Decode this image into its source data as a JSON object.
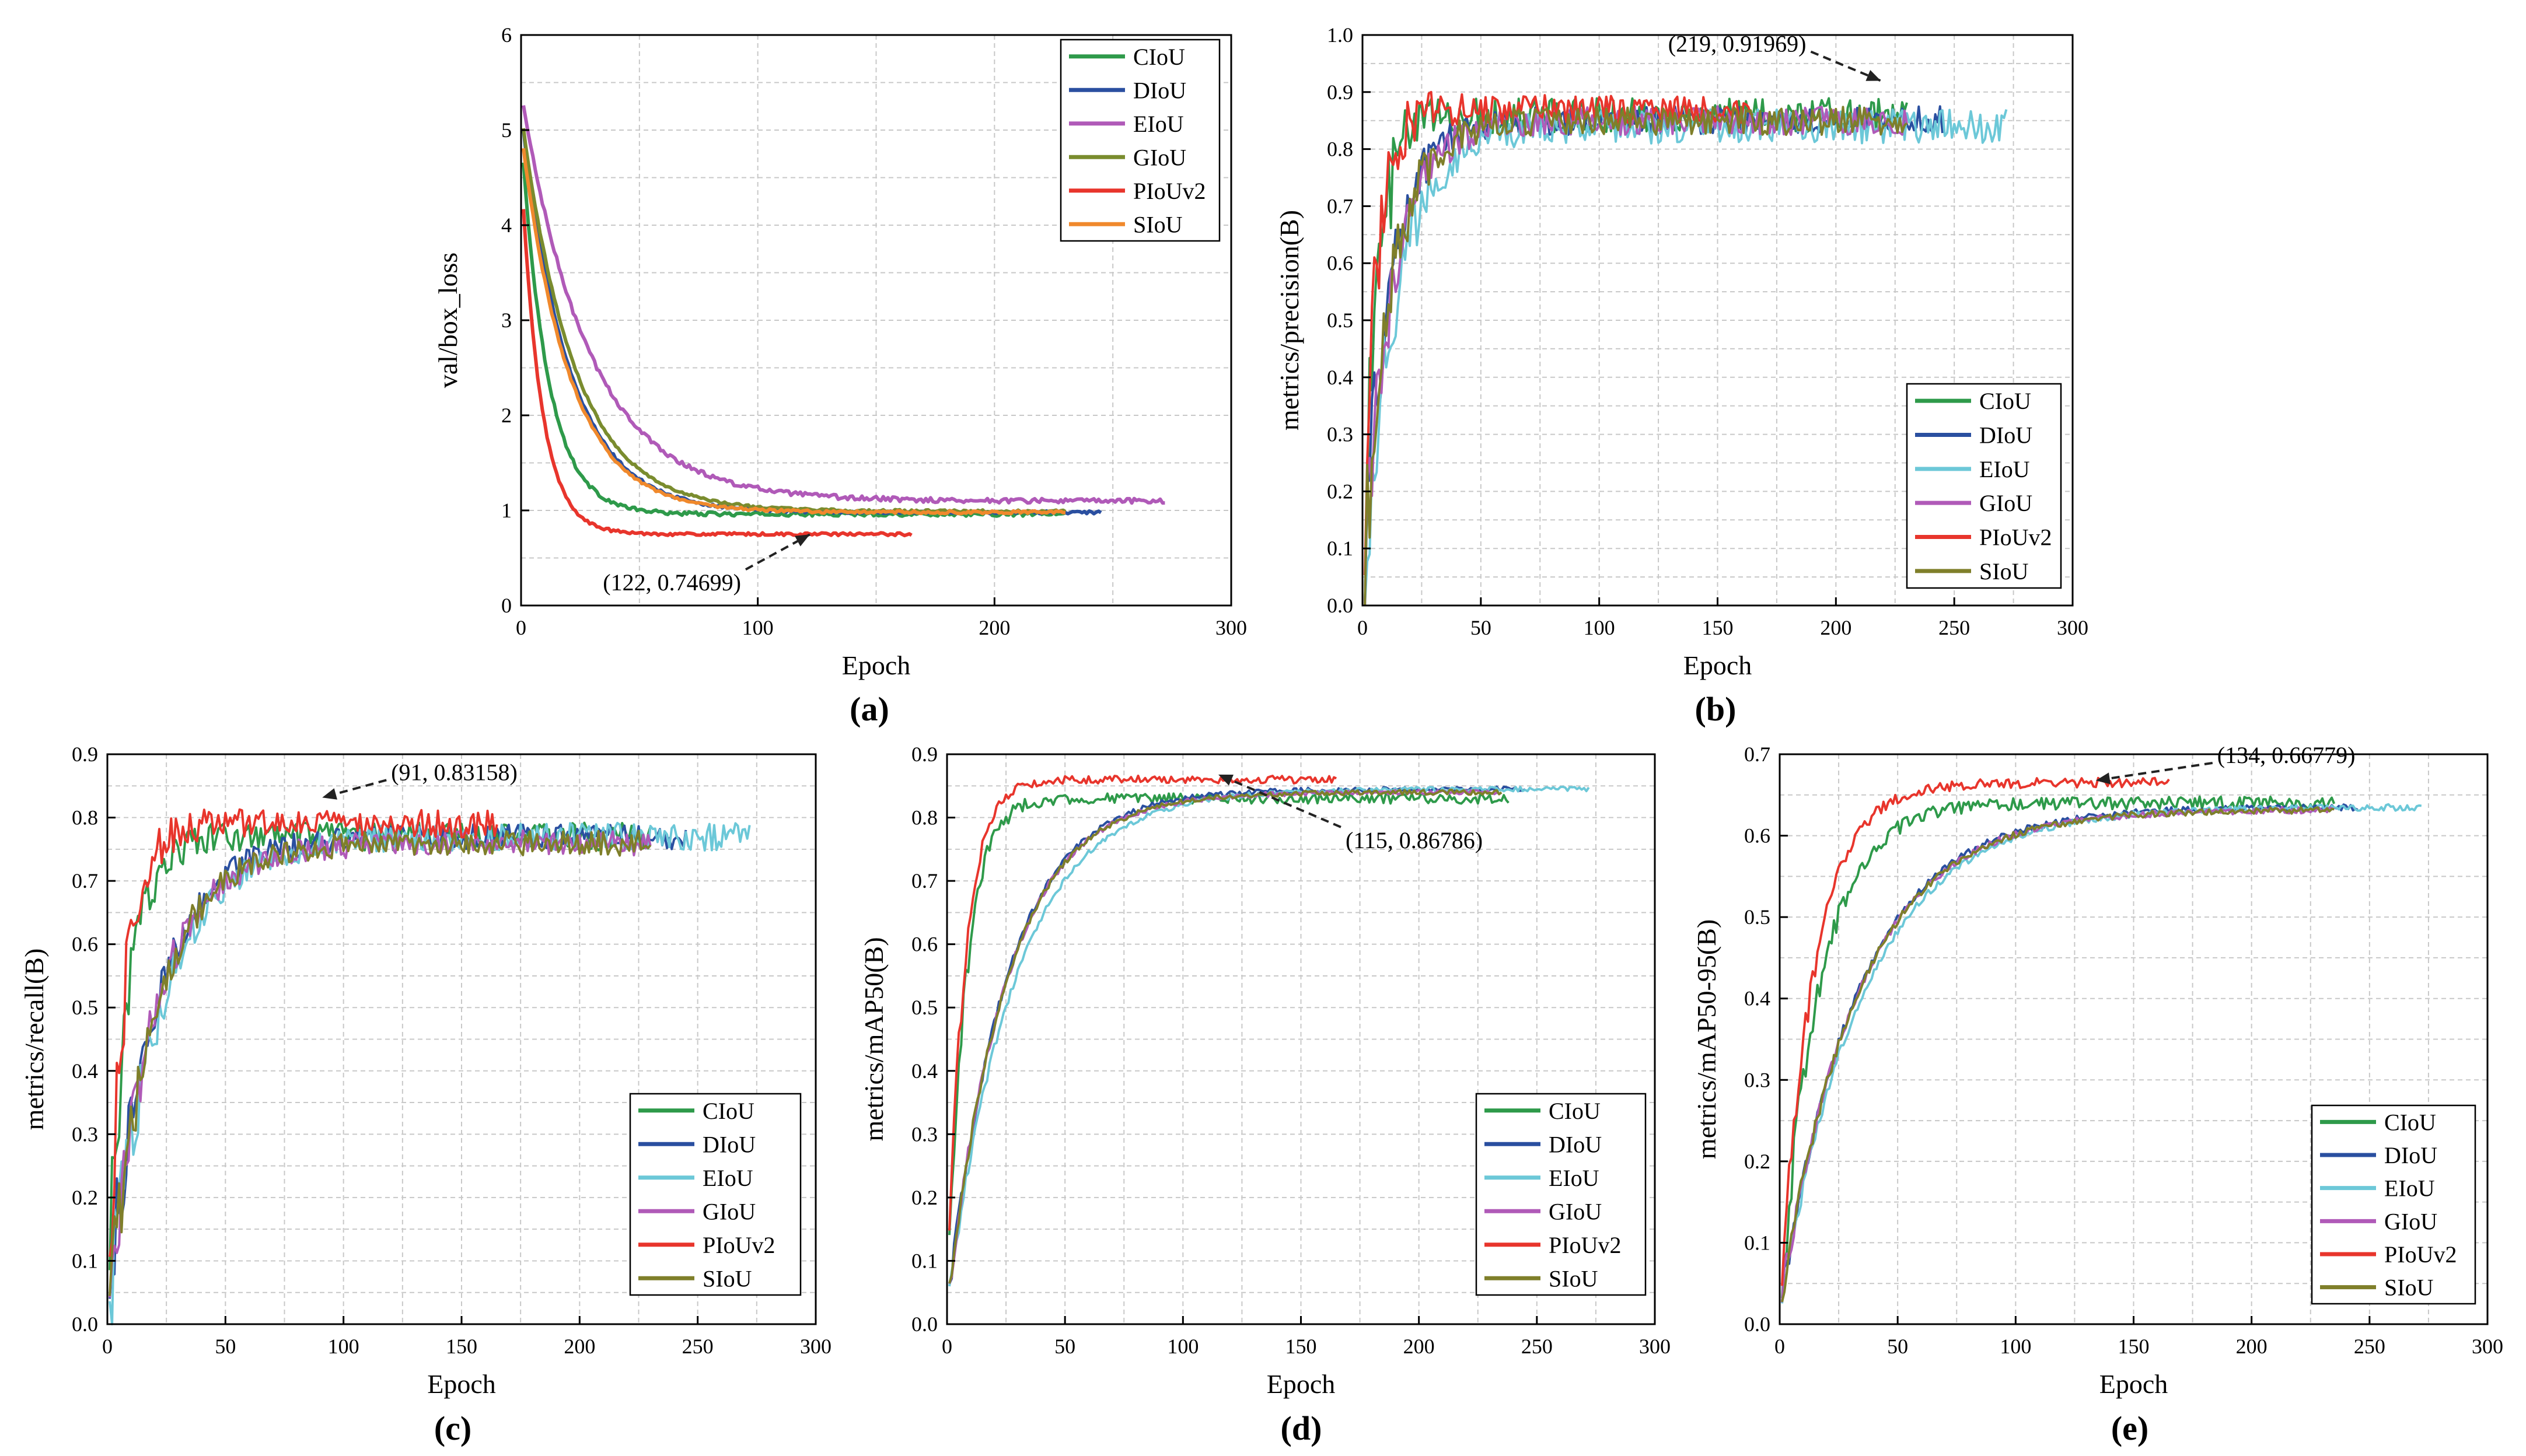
{
  "figure": {
    "description_free": true
  },
  "colors": {
    "CIoU": "#2e9a4a",
    "DIoU": "#2a4fa0",
    "EIoU": "#6cc8d8",
    "GIoU": "#b05ab8",
    "PIoUv2": "#e8352c",
    "SIoU": "#7f7f2a",
    "SIoU_orange": "#f0892c",
    "GIoU_olive": "#7a8c2e"
  },
  "chart_data": [
    {
      "id": "a",
      "type": "line",
      "caption": "(a)",
      "xlabel": "Epoch",
      "ylabel": "val/box_loss",
      "xlim": [
        0,
        300
      ],
      "ylim": [
        0,
        6
      ],
      "xticks": [
        "0",
        "100",
        "200",
        "300"
      ],
      "yticks": [
        "0",
        "1",
        "2",
        "3",
        "4",
        "5",
        "6"
      ],
      "grid": true,
      "legend_position": "top-right",
      "annotation": {
        "text": "(122, 0.74699)",
        "x": 122,
        "y": 0.74699
      },
      "series": [
        {
          "name": "CIoU",
          "color_key": "CIoU",
          "end_epoch": 230,
          "start": 5.0,
          "final": 0.96,
          "rate": 0.09,
          "noise": 0.02
        },
        {
          "name": "DIoU",
          "color_key": "DIoU",
          "end_epoch": 245,
          "start": 5.2,
          "final": 0.98,
          "rate": 0.05,
          "noise": 0.015
        },
        {
          "name": "EIoU",
          "color_key": "GIoU",
          "end_epoch": 272,
          "start": 5.4,
          "final": 1.1,
          "rate": 0.035,
          "noise": 0.025
        },
        {
          "name": "GIoU",
          "color_key": "GIoU_olive",
          "end_epoch": 230,
          "start": 5.2,
          "final": 0.99,
          "rate": 0.045,
          "noise": 0.015
        },
        {
          "name": "PIoUv2",
          "color_key": "PIoUv2",
          "end_epoch": 165,
          "start": 4.6,
          "final": 0.75,
          "rate": 0.12,
          "noise": 0.015
        },
        {
          "name": "SIoU",
          "color_key": "SIoU_orange",
          "end_epoch": 230,
          "start": 5.0,
          "final": 0.98,
          "rate": 0.05,
          "noise": 0.015
        }
      ]
    },
    {
      "id": "b",
      "type": "line",
      "caption": "(b)",
      "xlabel": "Epoch",
      "ylabel": "metrics/precision(B)",
      "xlim": [
        0,
        300
      ],
      "ylim": [
        0,
        1.0
      ],
      "xticks": [
        "0",
        "50",
        "100",
        "150",
        "200",
        "250",
        "300"
      ],
      "yticks": [
        "0.0",
        "0.1",
        "0.2",
        "0.3",
        "0.4",
        "0.5",
        "0.6",
        "0.7",
        "0.8",
        "0.9",
        "1.0"
      ],
      "grid": true,
      "legend_position": "bottom-right",
      "annotation": {
        "text": "(219, 0.91969)",
        "x": 219,
        "y": 0.91969
      },
      "series": [
        {
          "name": "CIoU",
          "color_key": "CIoU",
          "end_epoch": 230,
          "start": 0.02,
          "final": 0.86,
          "rate": 0.16,
          "noise": 0.03
        },
        {
          "name": "DIoU",
          "color_key": "DIoU",
          "end_epoch": 245,
          "start": 0.02,
          "final": 0.85,
          "rate": 0.09,
          "noise": 0.025
        },
        {
          "name": "EIoU",
          "color_key": "EIoU",
          "end_epoch": 272,
          "start": 0.02,
          "final": 0.84,
          "rate": 0.07,
          "noise": 0.03
        },
        {
          "name": "GIoU",
          "color_key": "GIoU",
          "end_epoch": 230,
          "start": 0.02,
          "final": 0.85,
          "rate": 0.08,
          "noise": 0.025
        },
        {
          "name": "PIoUv2",
          "color_key": "PIoUv2",
          "end_epoch": 165,
          "start": 0.02,
          "final": 0.87,
          "rate": 0.18,
          "noise": 0.025
        },
        {
          "name": "SIoU",
          "color_key": "SIoU",
          "end_epoch": 230,
          "start": 0.02,
          "final": 0.85,
          "rate": 0.085,
          "noise": 0.025
        }
      ]
    },
    {
      "id": "c",
      "type": "line",
      "caption": "(c)",
      "xlabel": "Epoch",
      "ylabel": "metrics/recall(B)",
      "xlim": [
        0,
        300
      ],
      "ylim": [
        0,
        0.9
      ],
      "xticks": [
        "0",
        "50",
        "100",
        "150",
        "200",
        "250",
        "300"
      ],
      "yticks": [
        "0.0",
        "0.1",
        "0.2",
        "0.3",
        "0.4",
        "0.5",
        "0.6",
        "0.7",
        "0.8",
        "0.9"
      ],
      "grid": true,
      "legend_position": "bottom-right",
      "annotation": {
        "text": "(91, 0.83158)",
        "x": 91,
        "y": 0.83158
      },
      "series": [
        {
          "name": "CIoU",
          "color_key": "CIoU",
          "end_epoch": 230,
          "start": 0.02,
          "final": 0.77,
          "rate": 0.12,
          "noise": 0.022
        },
        {
          "name": "DIoU",
          "color_key": "DIoU",
          "end_epoch": 245,
          "start": 0.02,
          "final": 0.77,
          "rate": 0.05,
          "noise": 0.02
        },
        {
          "name": "EIoU",
          "color_key": "EIoU",
          "end_epoch": 272,
          "start": 0.02,
          "final": 0.77,
          "rate": 0.045,
          "noise": 0.022
        },
        {
          "name": "GIoU",
          "color_key": "GIoU",
          "end_epoch": 230,
          "start": 0.02,
          "final": 0.76,
          "rate": 0.05,
          "noise": 0.02
        },
        {
          "name": "PIoUv2",
          "color_key": "PIoUv2",
          "end_epoch": 165,
          "start": 0.02,
          "final": 0.79,
          "rate": 0.14,
          "noise": 0.022
        },
        {
          "name": "SIoU",
          "color_key": "SIoU",
          "end_epoch": 230,
          "start": 0.02,
          "final": 0.76,
          "rate": 0.05,
          "noise": 0.02
        }
      ]
    },
    {
      "id": "d",
      "type": "line",
      "caption": "(d)",
      "xlabel": "Epoch",
      "ylabel": "metrics/mAP50(B)",
      "xlim": [
        0,
        300
      ],
      "ylim": [
        0,
        0.9
      ],
      "xticks": [
        "0",
        "50",
        "100",
        "150",
        "200",
        "250",
        "300"
      ],
      "yticks": [
        "0.0",
        "0.1",
        "0.2",
        "0.3",
        "0.4",
        "0.5",
        "0.6",
        "0.7",
        "0.8",
        "0.9"
      ],
      "grid": true,
      "legend_position": "bottom-right",
      "annotation": {
        "text": "(115, 0.86786)",
        "x": 115,
        "y": 0.86786
      },
      "series": [
        {
          "name": "CIoU",
          "color_key": "CIoU",
          "end_epoch": 238,
          "start": 0.02,
          "final": 0.83,
          "rate": 0.13,
          "noise": 0.008
        },
        {
          "name": "DIoU",
          "color_key": "DIoU",
          "end_epoch": 245,
          "start": 0.02,
          "final": 0.845,
          "rate": 0.04,
          "noise": 0.004
        },
        {
          "name": "EIoU",
          "color_key": "EIoU",
          "end_epoch": 272,
          "start": 0.02,
          "final": 0.845,
          "rate": 0.035,
          "noise": 0.004
        },
        {
          "name": "GIoU",
          "color_key": "GIoU",
          "end_epoch": 235,
          "start": 0.02,
          "final": 0.84,
          "rate": 0.04,
          "noise": 0.004
        },
        {
          "name": "PIoUv2",
          "color_key": "PIoUv2",
          "end_epoch": 165,
          "start": 0.02,
          "final": 0.86,
          "rate": 0.14,
          "noise": 0.006
        },
        {
          "name": "SIoU",
          "color_key": "SIoU",
          "end_epoch": 235,
          "start": 0.02,
          "final": 0.84,
          "rate": 0.04,
          "noise": 0.004
        }
      ]
    },
    {
      "id": "e",
      "type": "line",
      "caption": "(e)",
      "xlabel": "Epoch",
      "ylabel": "metrics/mAP50-95(B)",
      "xlim": [
        0,
        300
      ],
      "ylim": [
        0,
        0.7
      ],
      "xticks": [
        "0",
        "50",
        "100",
        "150",
        "200",
        "250",
        "300"
      ],
      "yticks": [
        "0.0",
        "0.1",
        "0.2",
        "0.3",
        "0.4",
        "0.5",
        "0.6",
        "0.7"
      ],
      "grid": true,
      "legend_position": "bottom-right",
      "annotation": {
        "text": "(134, 0.66779)",
        "x": 134,
        "y": 0.66779
      },
      "series": [
        {
          "name": "CIoU",
          "color_key": "CIoU",
          "end_epoch": 235,
          "start": 0.02,
          "final": 0.64,
          "rate": 0.06,
          "noise": 0.008
        },
        {
          "name": "DIoU",
          "color_key": "DIoU",
          "end_epoch": 245,
          "start": 0.02,
          "final": 0.635,
          "rate": 0.03,
          "noise": 0.004
        },
        {
          "name": "EIoU",
          "color_key": "EIoU",
          "end_epoch": 272,
          "start": 0.02,
          "final": 0.635,
          "rate": 0.028,
          "noise": 0.004
        },
        {
          "name": "GIoU",
          "color_key": "GIoU",
          "end_epoch": 235,
          "start": 0.02,
          "final": 0.632,
          "rate": 0.03,
          "noise": 0.004
        },
        {
          "name": "PIoUv2",
          "color_key": "PIoUv2",
          "end_epoch": 165,
          "start": 0.02,
          "final": 0.665,
          "rate": 0.07,
          "noise": 0.006
        },
        {
          "name": "SIoU",
          "color_key": "SIoU",
          "end_epoch": 235,
          "start": 0.02,
          "final": 0.632,
          "rate": 0.03,
          "noise": 0.004
        }
      ]
    }
  ]
}
